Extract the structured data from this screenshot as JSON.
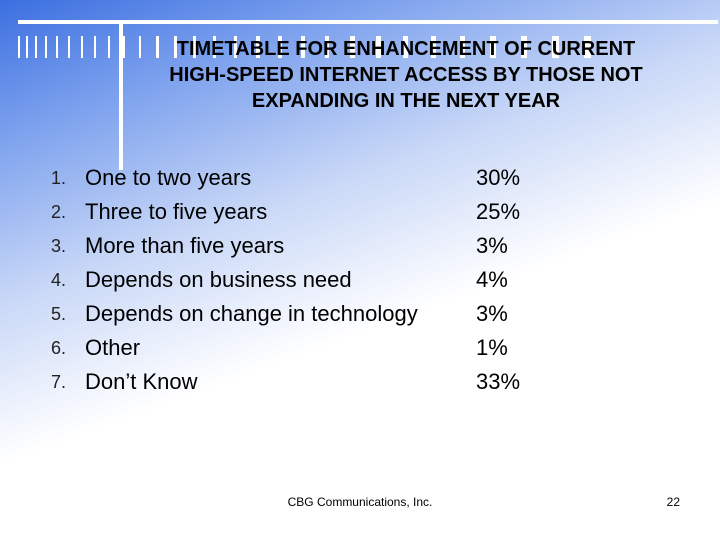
{
  "title": "TIMETABLE FOR ENHANCEMENT OF CURRENT HIGH-SPEED INTERNET ACCESS BY THOSE NOT EXPANDING IN THE NEXT YEAR",
  "items": [
    {
      "num": "1.",
      "label": "One to two years",
      "pct": "30%"
    },
    {
      "num": "2.",
      "label": "Three to five years",
      "pct": "25%"
    },
    {
      "num": "3.",
      "label": "More than five years",
      "pct": "3%"
    },
    {
      "num": "4.",
      "label": "Depends on business need",
      "pct": "4%"
    },
    {
      "num": "5.",
      "label": "Depends on change in technology",
      "pct": "3%"
    },
    {
      "num": "6.",
      "label": "Other",
      "pct": "1%"
    },
    {
      "num": "7.",
      "label": "Don’t Know",
      "pct": "33%"
    }
  ],
  "footer": "CBG Communications, Inc.",
  "page_number": "22",
  "colors": {
    "gradient_start": "#3b6fe0",
    "background": "#ffffff"
  }
}
